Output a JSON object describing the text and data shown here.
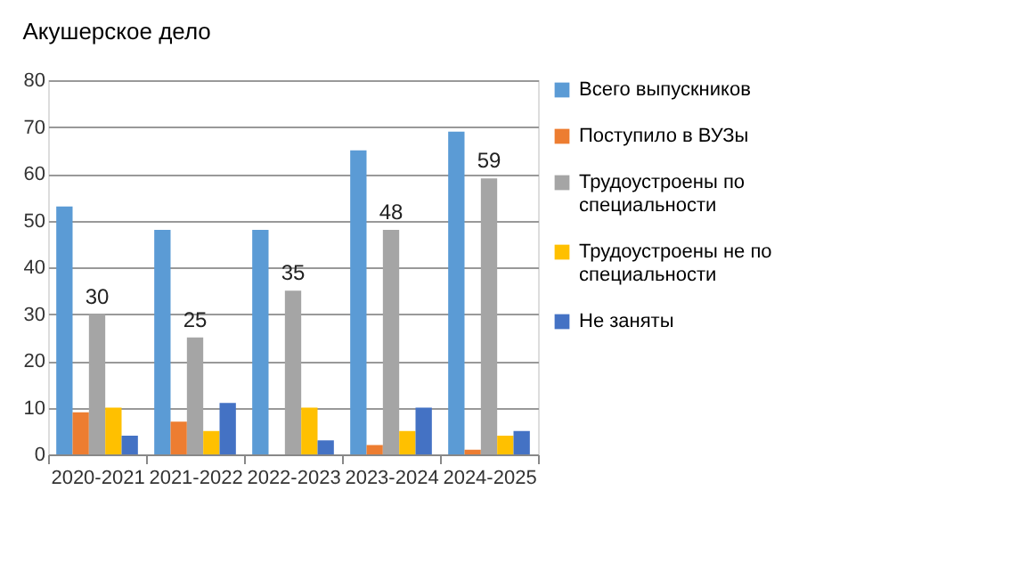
{
  "chart_data": {
    "type": "bar",
    "title": "Акушерское дело",
    "categories": [
      "2020-2021",
      "2021-2022",
      "2022-2023",
      "2023-2024",
      "2024-2025"
    ],
    "series": [
      {
        "name": "Всего выпускников",
        "color": "#5b9bd5",
        "values": [
          53,
          48,
          48,
          65,
          69
        ]
      },
      {
        "name": "Поступило в ВУЗы",
        "color": "#ed7d31",
        "values": [
          9,
          7,
          0,
          2,
          1
        ]
      },
      {
        "name": "Трудоустроены по специальности",
        "color": "#a5a5a5",
        "values": [
          30,
          25,
          35,
          48,
          59
        ],
        "value_labels": [
          "30",
          "25",
          "35",
          "48",
          "59"
        ]
      },
      {
        "name": "Трудоустроены не по специальности",
        "color": "#ffc000",
        "values": [
          10,
          5,
          10,
          5,
          4
        ]
      },
      {
        "name": "Не заняты",
        "color": "#4472c4",
        "values": [
          4,
          11,
          3,
          10,
          5
        ]
      }
    ],
    "ylim": [
      0,
      80
    ],
    "yticks": [
      0,
      10,
      20,
      30,
      40,
      50,
      60,
      70,
      80
    ],
    "grid": "y",
    "legend": "right"
  }
}
